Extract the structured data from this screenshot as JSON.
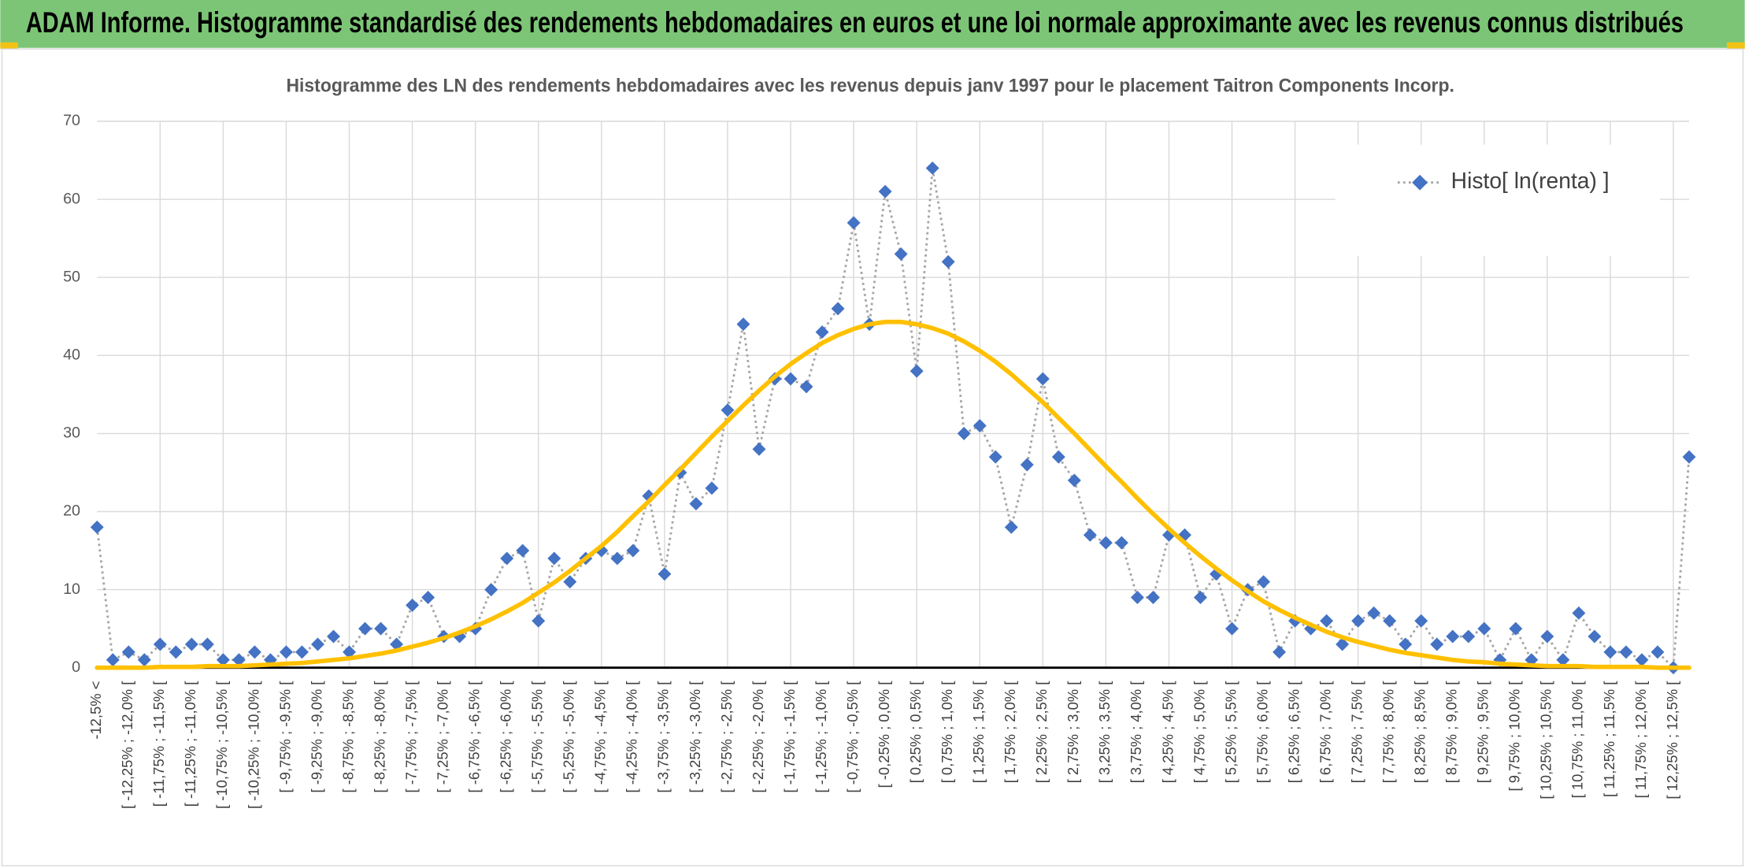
{
  "header": {
    "title": "ADAM Informe. Histogramme standardisé des rendements hebdomadaires en euros et une loi normale approximante avec les revenus connus distribués"
  },
  "chart_data": {
    "type": "line",
    "title": "Histogramme des LN des rendements hebdomadaires avec les revenus depuis janv 1997 pour le placement Taitron Components Incorp.",
    "categories": [
      "-12,5% <",
      null,
      "[ -12,25% ; -12,0% [",
      null,
      "[ -11,75% ; -11,5% [",
      null,
      "[ -11,25% ; -11,0% [",
      null,
      "[ -10,75% ; -10,5% [",
      null,
      "[ -10,25% ; -10,0% [",
      null,
      "[ -9,75% ; -9,5% [",
      null,
      "[ -9,25% ; -9,0% [",
      null,
      "[ -8,75% ; -8,5% [",
      null,
      "[ -8,25% ; -8,0% [",
      null,
      "[ -7,75% ; -7,5% [",
      null,
      "[ -7,25% ; -7,0% [",
      null,
      "[ -6,75% ; -6,5% [",
      null,
      "[ -6,25% ; -6,0% [",
      null,
      "[ -5,75% ; -5,5% [",
      null,
      "[ -5,25% ; -5,0% [",
      null,
      "[ -4,75% ; -4,5% [",
      null,
      "[ -4,25% ; -4,0% [",
      null,
      "[ -3,75% ; -3,5% [",
      null,
      "[ -3,25% ; -3,0% [",
      null,
      "[ -2,75% ; -2,5% [",
      null,
      "[ -2,25% ; -2,0% [",
      null,
      "[ -1,75% ; -1,5% [",
      null,
      "[ -1,25% ; -1,0% [",
      null,
      "[ -0,75% ; -0,5% [",
      null,
      "[ -0,25% ; 0,0% [",
      null,
      "[ 0,25% ; 0,5% [",
      null,
      "[ 0,75% ; 1,0% [",
      null,
      "[ 1,25% ; 1,5% [",
      null,
      "[ 1,75% ; 2,0% [",
      null,
      "[ 2,25% ; 2,5% [",
      null,
      "[ 2,75% ; 3,0% [",
      null,
      "[ 3,25% ; 3,5% [",
      null,
      "[ 3,75% ; 4,0% [",
      null,
      "[ 4,25% ; 4,5% [",
      null,
      "[ 4,75% ; 5,0% [",
      null,
      "[ 5,25% ; 5,5% [",
      null,
      "[ 5,75% ; 6,0% [",
      null,
      "[ 6,25% ; 6,5% [",
      null,
      "[ 6,75% ; 7,0% [",
      null,
      "[ 7,25% ; 7,5% [",
      null,
      "[ 7,75% ; 8,0% [",
      null,
      "[ 8,25% ; 8,5% [",
      null,
      "[ 8,75% ; 9,0% [",
      null,
      "[ 9,25% ; 9,5% [",
      null,
      "[ 9,75% ; 10,0% [",
      null,
      "[ 10,25% ; 10,5% [",
      null,
      "[ 10,75% ; 11,0% [",
      null,
      "[ 11,25% ; 11,5% [",
      null,
      "[ 11,75% ; 12,0% [",
      null,
      "[ 12,25% ; 12,5% [",
      null
    ],
    "series": [
      {
        "name": "Histo[ ln(renta) ]",
        "color": "#4472c4",
        "line_color": "#a6a6a6",
        "marker": "diamond",
        "values": [
          18,
          1,
          2,
          1,
          3,
          2,
          3,
          3,
          1,
          1,
          2,
          1,
          2,
          2,
          3,
          4,
          2,
          5,
          5,
          3,
          8,
          9,
          4,
          4,
          5,
          10,
          14,
          15,
          6,
          14,
          11,
          14,
          15,
          14,
          15,
          22,
          12,
          25,
          21,
          23,
          33,
          44,
          28,
          37,
          37,
          36,
          43,
          46,
          57,
          44,
          61,
          53,
          38,
          64,
          52,
          30,
          31,
          27,
          18,
          26,
          37,
          27,
          24,
          17,
          16,
          16,
          9,
          9,
          17,
          17,
          9,
          12,
          5,
          10,
          11,
          2,
          6,
          5,
          6,
          3,
          6,
          7,
          6,
          3,
          6,
          3,
          4,
          4,
          5,
          1,
          5,
          1,
          4,
          1,
          7,
          4,
          2,
          2,
          1,
          2,
          0,
          27
        ]
      },
      {
        "color": "#ffc000",
        "values": [
          0.0,
          0.0,
          0.0,
          0.0,
          0.1,
          0.1,
          0.1,
          0.2,
          0.2,
          0.2,
          0.3,
          0.4,
          0.5,
          0.6,
          0.8,
          1.0,
          1.2,
          1.5,
          1.8,
          2.2,
          2.7,
          3.2,
          3.8,
          4.5,
          5.3,
          6.2,
          7.2,
          8.3,
          9.6,
          10.9,
          12.4,
          14.0,
          15.6,
          17.4,
          19.4,
          21.3,
          23.4,
          25.4,
          27.5,
          29.6,
          31.6,
          33.6,
          35.5,
          37.3,
          38.9,
          40.3,
          41.6,
          42.6,
          43.4,
          44.0,
          44.3,
          44.3,
          44.0,
          43.5,
          42.8,
          41.8,
          40.6,
          39.2,
          37.6,
          35.8,
          34.0,
          32.0,
          30.0,
          27.9,
          25.8,
          23.8,
          21.7,
          19.7,
          17.8,
          16.0,
          14.3,
          12.7,
          11.2,
          9.8,
          8.5,
          7.4,
          6.4,
          5.5,
          4.6,
          3.9,
          3.3,
          2.8,
          2.3,
          1.9,
          1.6,
          1.3,
          1.0,
          0.8,
          0.7,
          0.5,
          0.4,
          0.3,
          0.2,
          0.2,
          0.2,
          0.1,
          0.1,
          0.1,
          0.1,
          0.0,
          0.0,
          0.0
        ]
      }
    ],
    "ylim": [
      0,
      70
    ],
    "yticks": [
      0,
      10,
      20,
      30,
      40,
      50,
      60,
      70
    ],
    "grid": true,
    "legend": "top-right"
  }
}
